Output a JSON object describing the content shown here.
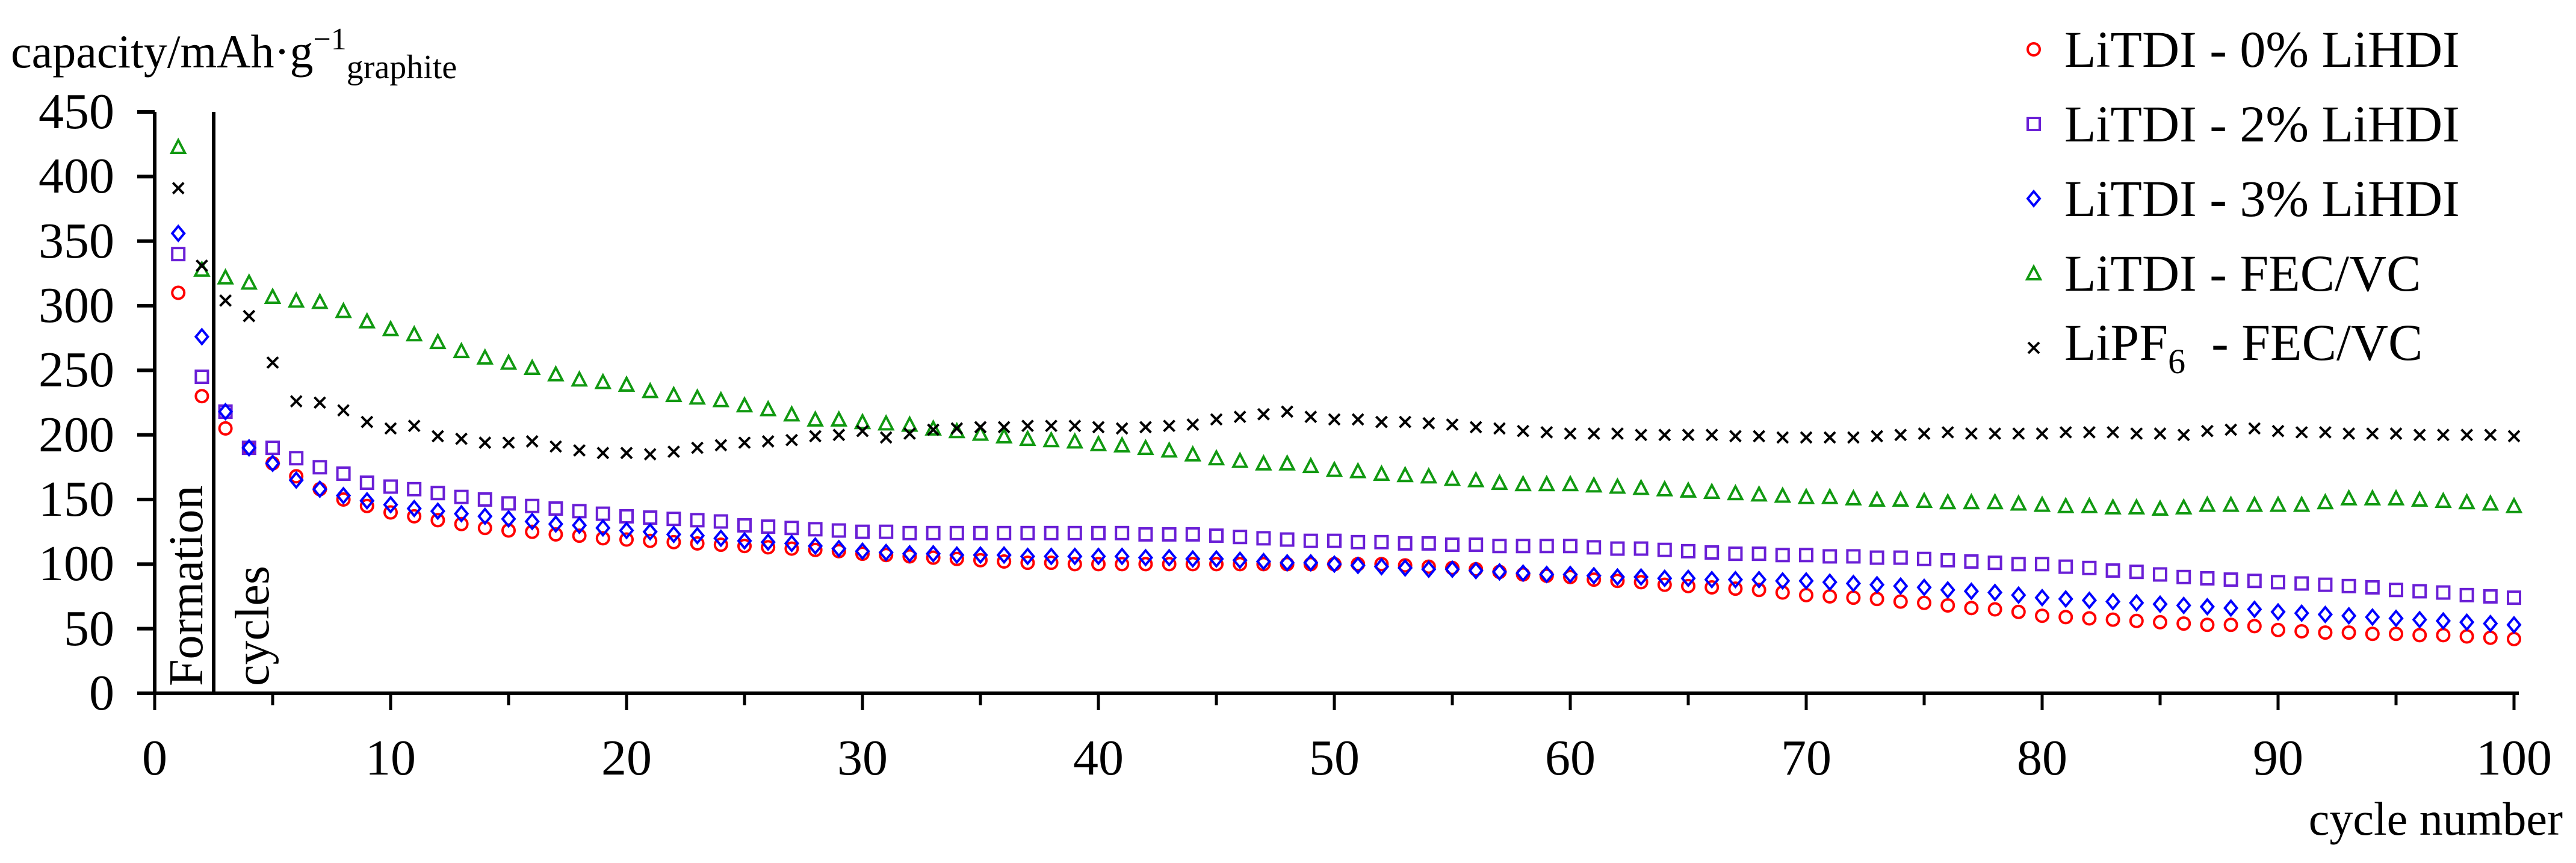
{
  "chart_data": {
    "type": "scatter",
    "title": "",
    "ylabel": "capacity/mAh·g⁻¹graphite",
    "ylabel_parts": {
      "main": "capacity/mAh·g",
      "sup": "−1",
      "sub": "graphite"
    },
    "xlabel": "cycle number",
    "xlim": [
      0,
      100
    ],
    "ylim": [
      0,
      450
    ],
    "xticks": [
      0,
      10,
      20,
      30,
      40,
      50,
      60,
      70,
      80,
      90,
      100
    ],
    "yticks": [
      0,
      50,
      100,
      150,
      200,
      250,
      300,
      350,
      400,
      450
    ],
    "grid": false,
    "legend_position": "top-right",
    "annotations": [
      {
        "text": "Formation",
        "x_start": 0,
        "x_end": 2.5,
        "orientation": "vertical"
      },
      {
        "text": "cycles",
        "x": 3,
        "orientation": "vertical"
      }
    ],
    "formation_divider_x": 2.5,
    "series": [
      {
        "name": "LiTDI - 0% LiHDI",
        "label_main": "LiTDI - 0% LiHDI",
        "marker": "circle",
        "color": "#ff0000",
        "x": [
          1,
          2,
          3,
          4,
          5,
          6,
          7,
          8,
          9,
          10,
          11,
          12,
          13,
          14,
          15,
          16,
          17,
          18,
          19,
          20,
          21,
          22,
          23,
          24,
          25,
          26,
          27,
          28,
          29,
          30,
          31,
          32,
          33,
          34,
          35,
          36,
          37,
          38,
          39,
          40,
          41,
          42,
          43,
          44,
          45,
          46,
          47,
          48,
          49,
          50,
          51,
          52,
          53,
          54,
          55,
          56,
          57,
          58,
          59,
          60,
          61,
          62,
          63,
          64,
          65,
          66,
          67,
          68,
          69,
          70,
          71,
          72,
          73,
          74,
          75,
          76,
          77,
          78,
          79,
          80,
          81,
          82,
          83,
          84,
          85,
          86,
          87,
          88,
          89,
          90,
          91,
          92,
          93,
          94,
          95,
          96,
          97,
          98,
          99,
          100
        ],
        "values": [
          310,
          230,
          205,
          190,
          178,
          168,
          158,
          150,
          145,
          140,
          137,
          134,
          131,
          128,
          126,
          125,
          123,
          122,
          120,
          119,
          118,
          117,
          116,
          115,
          114,
          113,
          112,
          111,
          110,
          108,
          107,
          106,
          105,
          104,
          103,
          102,
          101,
          101,
          100,
          100,
          100,
          100,
          100,
          100,
          100,
          100,
          100,
          100,
          100,
          100,
          100,
          100,
          99,
          98,
          97,
          96,
          94,
          92,
          91,
          90,
          88,
          87,
          86,
          84,
          83,
          82,
          81,
          80,
          78,
          76,
          75,
          74,
          73,
          71,
          70,
          68,
          66,
          65,
          63,
          60,
          59,
          58,
          57,
          56,
          55,
          54,
          53,
          53,
          52,
          49,
          48,
          47,
          47,
          46,
          46,
          45,
          45,
          44,
          43,
          42
        ]
      },
      {
        "name": "LiTDI - 2% LiHDI",
        "label_main": "LiTDI - 2% LiHDI",
        "marker": "square",
        "color": "#6a1fd6",
        "x": [
          1,
          2,
          3,
          4,
          5,
          6,
          7,
          8,
          9,
          10,
          11,
          12,
          13,
          14,
          15,
          16,
          17,
          18,
          19,
          20,
          21,
          22,
          23,
          24,
          25,
          26,
          27,
          28,
          29,
          30,
          31,
          32,
          33,
          34,
          35,
          36,
          37,
          38,
          39,
          40,
          41,
          42,
          43,
          44,
          45,
          46,
          47,
          48,
          49,
          50,
          51,
          52,
          53,
          54,
          55,
          56,
          57,
          58,
          59,
          60,
          61,
          62,
          63,
          64,
          65,
          66,
          67,
          68,
          69,
          70,
          71,
          72,
          73,
          74,
          75,
          76,
          77,
          78,
          79,
          80,
          81,
          82,
          83,
          84,
          85,
          86,
          87,
          88,
          89,
          90,
          91,
          92,
          93,
          94,
          95,
          96,
          97,
          98,
          99,
          100
        ],
        "values": [
          340,
          245,
          218,
          190,
          190,
          182,
          175,
          170,
          163,
          160,
          158,
          155,
          152,
          150,
          147,
          145,
          143,
          141,
          139,
          137,
          136,
          135,
          134,
          133,
          130,
          129,
          128,
          127,
          126,
          125,
          125,
          124,
          124,
          124,
          124,
          124,
          124,
          124,
          124,
          124,
          124,
          123,
          123,
          123,
          122,
          121,
          120,
          119,
          118,
          118,
          117,
          117,
          116,
          116,
          115,
          115,
          114,
          114,
          114,
          114,
          113,
          112,
          112,
          111,
          110,
          109,
          108,
          108,
          107,
          107,
          106,
          106,
          105,
          105,
          104,
          103,
          102,
          101,
          100,
          100,
          98,
          97,
          95,
          94,
          92,
          90,
          89,
          88,
          87,
          86,
          85,
          84,
          83,
          82,
          80,
          79,
          78,
          76,
          75,
          74
        ]
      },
      {
        "name": "LiTDI - 3% LiHDI",
        "label_main": "LiTDI - 3% LiHDI",
        "marker": "diamond",
        "color": "#0000ff",
        "x": [
          1,
          2,
          3,
          4,
          5,
          6,
          7,
          8,
          9,
          10,
          11,
          12,
          13,
          14,
          15,
          16,
          17,
          18,
          19,
          20,
          21,
          22,
          23,
          24,
          25,
          26,
          27,
          28,
          29,
          30,
          31,
          32,
          33,
          34,
          35,
          36,
          37,
          38,
          39,
          40,
          41,
          42,
          43,
          44,
          45,
          46,
          47,
          48,
          49,
          50,
          51,
          52,
          53,
          54,
          55,
          56,
          57,
          58,
          59,
          60,
          61,
          62,
          63,
          64,
          65,
          66,
          67,
          68,
          69,
          70,
          71,
          72,
          73,
          74,
          75,
          76,
          77,
          78,
          79,
          80,
          81,
          82,
          83,
          84,
          85,
          86,
          87,
          88,
          89,
          90,
          91,
          92,
          93,
          94,
          95,
          96,
          97,
          98,
          99,
          100
        ],
        "values": [
          356,
          276,
          218,
          190,
          178,
          165,
          158,
          153,
          149,
          146,
          143,
          141,
          139,
          137,
          135,
          133,
          131,
          130,
          128,
          126,
          125,
          123,
          122,
          120,
          118,
          117,
          116,
          114,
          112,
          110,
          109,
          108,
          108,
          107,
          107,
          107,
          106,
          106,
          106,
          106,
          106,
          105,
          105,
          104,
          104,
          103,
          102,
          101,
          101,
          100,
          99,
          98,
          97,
          96,
          96,
          95,
          94,
          93,
          92,
          92,
          91,
          90,
          90,
          89,
          89,
          88,
          88,
          88,
          87,
          87,
          86,
          85,
          84,
          83,
          82,
          80,
          79,
          78,
          76,
          74,
          73,
          72,
          71,
          70,
          69,
          68,
          67,
          66,
          65,
          63,
          62,
          61,
          60,
          59,
          58,
          57,
          56,
          55,
          54,
          53
        ]
      },
      {
        "name": "LiTDI - FEC/VC",
        "label_main": "LiTDI - FEC/VC",
        "marker": "triangle",
        "color": "#119911",
        "x": [
          1,
          2,
          3,
          4,
          5,
          6,
          7,
          8,
          9,
          10,
          11,
          12,
          13,
          14,
          15,
          16,
          17,
          18,
          19,
          20,
          21,
          22,
          23,
          24,
          25,
          26,
          27,
          28,
          29,
          30,
          31,
          32,
          33,
          34,
          35,
          36,
          37,
          38,
          39,
          40,
          41,
          42,
          43,
          44,
          45,
          46,
          47,
          48,
          49,
          50,
          51,
          52,
          53,
          54,
          55,
          56,
          57,
          58,
          59,
          60,
          61,
          62,
          63,
          64,
          65,
          66,
          67,
          68,
          69,
          70,
          71,
          72,
          73,
          74,
          75,
          76,
          77,
          78,
          79,
          80,
          81,
          82,
          83,
          84,
          85,
          86,
          87,
          88,
          89,
          90,
          91,
          92,
          93,
          94,
          95,
          96,
          97,
          98,
          99,
          100
        ],
        "values": [
          423,
          328,
          322,
          318,
          307,
          304,
          303,
          296,
          288,
          282,
          278,
          272,
          265,
          260,
          256,
          252,
          247,
          243,
          241,
          239,
          234,
          231,
          229,
          227,
          223,
          220,
          216,
          212,
          212,
          210,
          209,
          208,
          205,
          203,
          201,
          199,
          197,
          196,
          195,
          193,
          192,
          190,
          188,
          185,
          182,
          180,
          178,
          178,
          176,
          173,
          172,
          170,
          169,
          168,
          166,
          165,
          163,
          162,
          162,
          162,
          161,
          160,
          159,
          158,
          157,
          156,
          155,
          154,
          153,
          152,
          152,
          151,
          150,
          150,
          149,
          148,
          148,
          148,
          147,
          146,
          145,
          145,
          144,
          144,
          143,
          144,
          146,
          146,
          146,
          146,
          146,
          148,
          151,
          151,
          151,
          150,
          149,
          148,
          147,
          145
        ]
      },
      {
        "name": "LiPF6 - FEC/VC",
        "label_main": "LiPF",
        "label_sub": "6",
        "label_rest": " - FEC/VC",
        "marker": "x",
        "color": "#000000",
        "x": [
          1,
          2,
          3,
          4,
          5,
          6,
          7,
          8,
          9,
          10,
          11,
          12,
          13,
          14,
          15,
          16,
          17,
          18,
          19,
          20,
          21,
          22,
          23,
          24,
          25,
          26,
          27,
          28,
          29,
          30,
          31,
          32,
          33,
          34,
          35,
          36,
          37,
          38,
          39,
          40,
          41,
          42,
          43,
          44,
          45,
          46,
          47,
          48,
          49,
          50,
          51,
          52,
          53,
          54,
          55,
          56,
          57,
          58,
          59,
          60,
          61,
          62,
          63,
          64,
          65,
          66,
          67,
          68,
          69,
          70,
          71,
          72,
          73,
          74,
          75,
          76,
          77,
          78,
          79,
          80,
          81,
          82,
          83,
          84,
          85,
          86,
          87,
          88,
          89,
          90,
          91,
          92,
          93,
          94,
          95,
          96,
          97,
          98,
          99,
          100
        ],
        "values": [
          391,
          331,
          304,
          292,
          256,
          226,
          225,
          219,
          210,
          205,
          207,
          199,
          197,
          194,
          194,
          195,
          191,
          188,
          186,
          186,
          185,
          187,
          190,
          192,
          194,
          195,
          196,
          199,
          200,
          203,
          198,
          201,
          204,
          205,
          206,
          206,
          207,
          207,
          207,
          206,
          205,
          206,
          207,
          208,
          212,
          214,
          216,
          218,
          214,
          212,
          212,
          210,
          210,
          209,
          208,
          206,
          205,
          203,
          202,
          201,
          201,
          201,
          200,
          200,
          200,
          200,
          199,
          199,
          198,
          198,
          198,
          198,
          199,
          200,
          201,
          202,
          201,
          201,
          201,
          201,
          202,
          202,
          202,
          201,
          201,
          200,
          203,
          204,
          205,
          203,
          202,
          202,
          201,
          201,
          201,
          200,
          200,
          200,
          200,
          199
        ]
      }
    ]
  },
  "axis": {
    "ylabel_main": "capacity/mAh·g",
    "ylabel_sup": "−1",
    "ylabel_sub": "graphite",
    "xlabel": "cycle number"
  },
  "annotations": {
    "formation": "Formation",
    "cycles": "cycles"
  },
  "legend": {
    "items": [
      {
        "label": "LiTDI - 0% LiHDI"
      },
      {
        "label": "LiTDI - 2% LiHDI"
      },
      {
        "label": "LiTDI - 3% LiHDI"
      },
      {
        "label": "LiTDI - FEC/VC"
      },
      {
        "label_main": "LiPF",
        "label_sub": "6",
        "label_rest": "  - FEC/VC"
      }
    ]
  }
}
